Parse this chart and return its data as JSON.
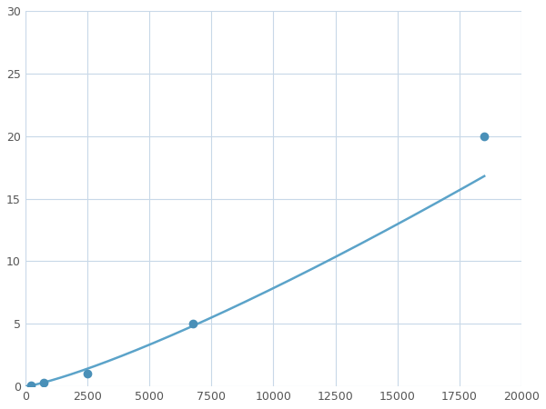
{
  "x_points": [
    250,
    750,
    2500,
    6750,
    18500
  ],
  "y_points": [
    0.1,
    0.3,
    1.0,
    5.0,
    20.0
  ],
  "line_color": "#5ba3c9",
  "marker_color": "#4a90b8",
  "marker_size": 6,
  "marker_style": "o",
  "line_width": 1.8,
  "xlim": [
    0,
    20000
  ],
  "ylim": [
    0,
    30
  ],
  "xticks": [
    0,
    2500,
    5000,
    7500,
    10000,
    12500,
    15000,
    17500,
    20000
  ],
  "yticks": [
    0,
    5,
    10,
    15,
    20,
    25,
    30
  ],
  "grid_color": "#c8d8e8",
  "background_color": "#ffffff",
  "figsize": [
    6.0,
    4.5
  ],
  "dpi": 100
}
